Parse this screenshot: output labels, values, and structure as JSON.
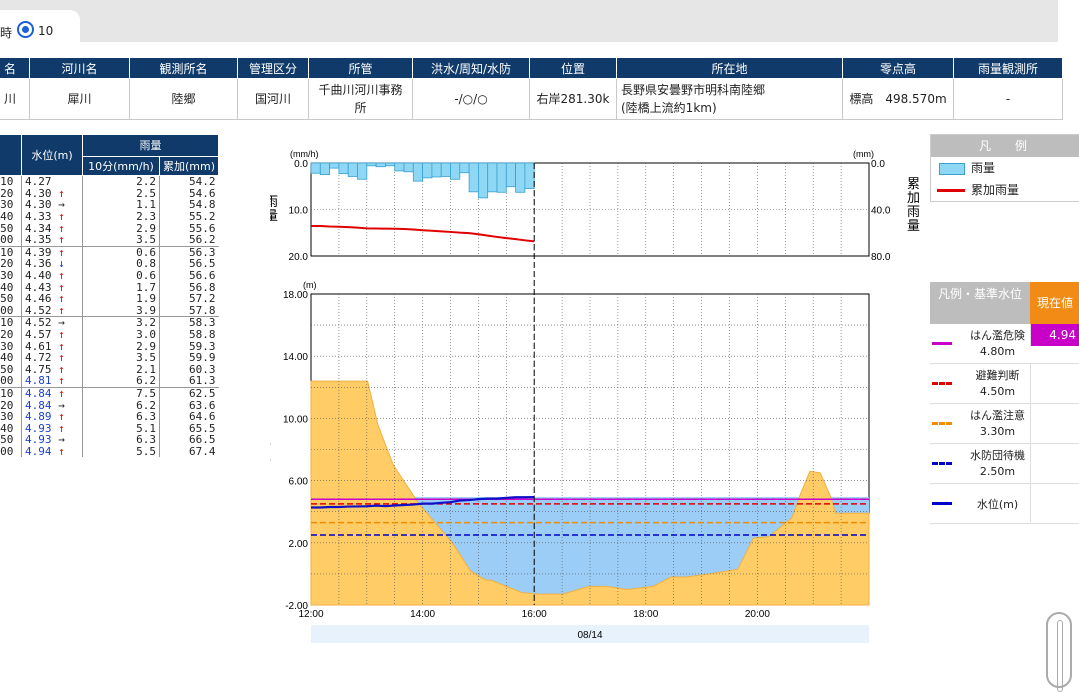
{
  "top": {
    "cut_label": "時",
    "radio_label": "10"
  },
  "info": {
    "headers": [
      "名",
      "河川名",
      "観測所名",
      "管理区分",
      "所管",
      "洪水/周知/水防",
      "位置",
      "所在地",
      "零点高",
      "雨量観測所"
    ],
    "values": [
      "川",
      "犀川",
      "陸郷",
      "国河川",
      "千曲川河川事務所",
      "-/○/○",
      "右岸281.30k",
      "長野県安曇野市明科南陸郷\n(陸橋上流約1km)",
      "標高　498.570m",
      "-"
    ]
  },
  "data_table": {
    "head_level": "水位(m)",
    "head_rain": "雨量",
    "head_10min": "10分(mm/h)",
    "head_cum": "累加(mm)",
    "rows": [
      {
        "t": ":10",
        "w": "4.27",
        "a": "",
        "r": "2.2",
        "c": "54.2",
        "blue": false
      },
      {
        "t": ":20",
        "w": "4.30",
        "a": "↑",
        "r": "2.5",
        "c": "54.6",
        "blue": false
      },
      {
        "t": ":30",
        "w": "4.30",
        "a": "→",
        "r": "1.1",
        "c": "54.8",
        "blue": false
      },
      {
        "t": ":40",
        "w": "4.33",
        "a": "↑",
        "r": "2.3",
        "c": "55.2",
        "blue": false
      },
      {
        "t": ":50",
        "w": "4.34",
        "a": "↑",
        "r": "2.9",
        "c": "55.6",
        "blue": false
      },
      {
        "t": ":00",
        "w": "4.35",
        "a": "↑",
        "r": "3.5",
        "c": "56.2",
        "blue": false
      },
      {
        "t": ":10",
        "w": "4.39",
        "a": "↑",
        "r": "0.6",
        "c": "56.3",
        "blue": false
      },
      {
        "t": ":20",
        "w": "4.36",
        "a": "↓",
        "r": "0.8",
        "c": "56.5",
        "blue": false
      },
      {
        "t": ":30",
        "w": "4.40",
        "a": "↑",
        "r": "0.6",
        "c": "56.6",
        "blue": false
      },
      {
        "t": ":40",
        "w": "4.43",
        "a": "↑",
        "r": "1.7",
        "c": "56.8",
        "blue": false
      },
      {
        "t": ":50",
        "w": "4.46",
        "a": "↑",
        "r": "1.9",
        "c": "57.2",
        "blue": false
      },
      {
        "t": ":00",
        "w": "4.52",
        "a": "↑",
        "r": "3.9",
        "c": "57.8",
        "blue": false
      },
      {
        "t": ":10",
        "w": "4.52",
        "a": "→",
        "r": "3.2",
        "c": "58.3",
        "blue": false
      },
      {
        "t": ":20",
        "w": "4.57",
        "a": "↑",
        "r": "3.0",
        "c": "58.8",
        "blue": false
      },
      {
        "t": ":30",
        "w": "4.61",
        "a": "↑",
        "r": "2.9",
        "c": "59.3",
        "blue": false
      },
      {
        "t": ":40",
        "w": "4.72",
        "a": "↑",
        "r": "3.5",
        "c": "59.9",
        "blue": false
      },
      {
        "t": ":50",
        "w": "4.75",
        "a": "↑",
        "r": "2.1",
        "c": "60.3",
        "blue": false
      },
      {
        "t": ":00",
        "w": "4.81",
        "a": "↑",
        "r": "6.2",
        "c": "61.3",
        "blue": true
      },
      {
        "t": ":10",
        "w": "4.84",
        "a": "↑",
        "r": "7.5",
        "c": "62.5",
        "blue": true
      },
      {
        "t": ":20",
        "w": "4.84",
        "a": "→",
        "r": "6.2",
        "c": "63.6",
        "blue": true
      },
      {
        "t": ":30",
        "w": "4.89",
        "a": "↑",
        "r": "6.3",
        "c": "64.6",
        "blue": true
      },
      {
        "t": ":40",
        "w": "4.93",
        "a": "↑",
        "r": "5.1",
        "c": "65.5",
        "blue": true
      },
      {
        "t": ":50",
        "w": "4.93",
        "a": "→",
        "r": "6.3",
        "c": "66.5",
        "blue": true
      },
      {
        "t": ":00",
        "w": "4.94",
        "a": "↑",
        "r": "5.5",
        "c": "67.4",
        "blue": true
      }
    ]
  },
  "chart_data": [
    {
      "type": "bar",
      "ylabel": "雨量",
      "y2label": "累加雨量",
      "yunit": "(mm/h)",
      "y2unit": "(mm)",
      "ylim": [
        0,
        20
      ],
      "y2lim": [
        0,
        80
      ],
      "yticks": [
        "0.0",
        "10.0",
        "20.0"
      ],
      "y2ticks": [
        "0.0",
        "40.0",
        "80.0"
      ],
      "rain_values": [
        2.2,
        2.5,
        1.1,
        2.3,
        2.9,
        3.5,
        0.6,
        0.8,
        0.6,
        1.7,
        1.9,
        3.9,
        3.2,
        3.0,
        2.9,
        3.5,
        2.1,
        6.2,
        7.5,
        6.2,
        6.3,
        5.1,
        6.3,
        5.5
      ],
      "cum_values": [
        54.2,
        54.6,
        54.8,
        55.2,
        55.6,
        56.2,
        56.3,
        56.5,
        56.6,
        56.8,
        57.2,
        57.8,
        58.3,
        58.8,
        59.3,
        59.9,
        60.3,
        61.3,
        62.5,
        63.6,
        64.6,
        65.5,
        66.5,
        67.4
      ]
    },
    {
      "type": "line",
      "ylabel": "水位",
      "yunit": "(m)",
      "ylim": [
        -2,
        18
      ],
      "yticks": [
        "-2.00",
        "2.00",
        "6.00",
        "10.00",
        "14.00",
        "18.00"
      ],
      "xticks": [
        "12:00",
        "14:00",
        "16:00",
        "18:00",
        "20:00"
      ],
      "xlabel": "08/14",
      "water_level": [
        4.27,
        4.3,
        4.3,
        4.33,
        4.34,
        4.35,
        4.39,
        4.36,
        4.4,
        4.43,
        4.46,
        4.52,
        4.52,
        4.57,
        4.61,
        4.72,
        4.75,
        4.81,
        4.84,
        4.84,
        4.89,
        4.93,
        4.93,
        4.94
      ],
      "thresholds": [
        {
          "name": "はん濫危険",
          "value": 4.8,
          "color": "#c800c8"
        },
        {
          "name": "避難判断",
          "value": 4.5,
          "color": "#e00000"
        },
        {
          "name": "はん濫注意",
          "value": 3.3,
          "color": "#f08c00"
        },
        {
          "name": "水防団待機",
          "value": 2.5,
          "color": "#0000c8"
        }
      ],
      "river_profile_h": [
        0,
        0.6,
        1.2,
        2.2,
        2.6,
        3.2,
        4.2,
        5.5,
        6.2,
        6.8,
        7.0,
        7.6,
        8.2,
        8.8,
        9.8,
        10.8,
        11.5,
        12.3,
        13.3,
        14.0,
        14.6,
        15.5,
        16.6,
        17.2,
        17.8,
        18.7,
        19.0,
        19.4,
        19.8,
        20.2,
        20.4,
        21.0,
        21.3,
        21.7
      ],
      "river_profile_v": [
        12.4,
        12.4,
        12.4,
        12.4,
        9.6,
        7.0,
        4.5,
        2.0,
        0.2,
        -0.4,
        -0.4,
        -0.8,
        -1.2,
        -1.3,
        -1.3,
        -0.8,
        -0.8,
        -1.0,
        -0.8,
        -0.2,
        -0.2,
        0.0,
        0.3,
        2.3,
        2.4,
        3.6,
        5.0,
        6.6,
        6.5,
        5.0,
        3.9,
        3.9,
        3.9,
        3.9
      ]
    }
  ],
  "legend1": {
    "title": "凡　例",
    "rain": "雨量",
    "cum": "累加雨量"
  },
  "legend2": {
    "title": "凡例・基準水位",
    "current": "現在値",
    "current_value": "4.94",
    "items": [
      {
        "name": "はん濫危険",
        "value": "4.80m",
        "color": "#c800c8"
      },
      {
        "name": "避難判断",
        "value": "4.50m",
        "color": "#e00000"
      },
      {
        "name": "はん濫注意",
        "value": "3.30m",
        "color": "#f08c00"
      },
      {
        "name": "水防団待機",
        "value": "2.50m",
        "color": "#0000c8"
      },
      {
        "name": "水位(m)",
        "value": "",
        "color": "#0000c8"
      }
    ]
  }
}
